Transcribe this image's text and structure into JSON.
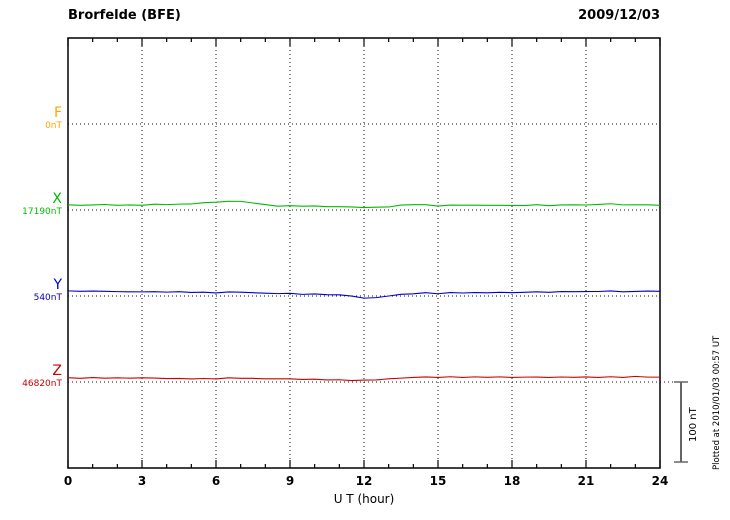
{
  "chart_data": {
    "type": "line",
    "title": "Brorfelde (BFE)",
    "date_label": "2009/12/03",
    "xlabel": "U T (hour)",
    "xlim": [
      0,
      24
    ],
    "x_ticks": [
      0,
      3,
      6,
      9,
      12,
      15,
      18,
      21,
      24
    ],
    "x_step_hours": 0.5,
    "unit": "nT",
    "scale_bar_label": "100 nT",
    "scale_bar_nT": 100,
    "plotted_at": "Plotted at 2010/01/03 00:57 UT",
    "grid": "dotted vertical every 3h, dotted horizontal baseline per component",
    "series": [
      {
        "name": "F",
        "base_label": "0nT",
        "color": "#FFA500",
        "values": []
      },
      {
        "name": "X",
        "base_label": "17190nT",
        "color": "#00BB00",
        "values": [
          6.2,
          6.0,
          6.3,
          6.8,
          6.1,
          6.0,
          6.2,
          6.9,
          7.1,
          7.0,
          7.8,
          8.9,
          9.8,
          10.9,
          10.6,
          9.0,
          6.4,
          5.2,
          5.0,
          5.1,
          4.8,
          4.3,
          4.0,
          3.8,
          3.2,
          3.3,
          4.1,
          5.8,
          7.0,
          6.2,
          5.3,
          5.9,
          6.1,
          6.0,
          5.8,
          6.1,
          5.4,
          5.9,
          6.2,
          5.8,
          6.0,
          6.8,
          6.1,
          7.0,
          7.9,
          6.2,
          6.8,
          6.1,
          6.3
        ]
      },
      {
        "name": "Y",
        "base_label": "540nT",
        "color": "#0000CC",
        "values": [
          6.0,
          6.2,
          5.9,
          6.1,
          5.4,
          5.2,
          5.3,
          5.1,
          5.2,
          5.0,
          4.9,
          4.4,
          4.2,
          4.8,
          4.9,
          4.1,
          3.4,
          3.2,
          3.0,
          2.4,
          2.2,
          2.0,
          1.2,
          0.2,
          -2.8,
          -2.0,
          0.1,
          1.9,
          3.1,
          3.8,
          3.2,
          3.9,
          4.1,
          4.0,
          4.2,
          4.6,
          4.1,
          4.8,
          4.9,
          5.0,
          5.1,
          5.8,
          5.2,
          5.9,
          6.1,
          5.3,
          5.8,
          6.0,
          6.1
        ]
      },
      {
        "name": "Z",
        "base_label": "46820nT",
        "color": "#CC0000",
        "values": [
          5.1,
          5.0,
          5.2,
          5.1,
          4.9,
          5.0,
          5.1,
          4.9,
          4.4,
          4.2,
          4.1,
          4.0,
          4.2,
          4.8,
          4.9,
          4.3,
          4.1,
          4.0,
          3.9,
          3.4,
          3.2,
          3.0,
          2.4,
          2.2,
          2.1,
          2.9,
          3.8,
          4.9,
          5.8,
          6.1,
          6.0,
          6.2,
          6.1,
          6.0,
          6.2,
          6.1,
          5.9,
          6.0,
          6.1,
          5.9,
          6.0,
          6.2,
          6.0,
          6.1,
          6.2,
          6.0,
          6.8,
          6.2,
          6.1
        ]
      }
    ]
  }
}
